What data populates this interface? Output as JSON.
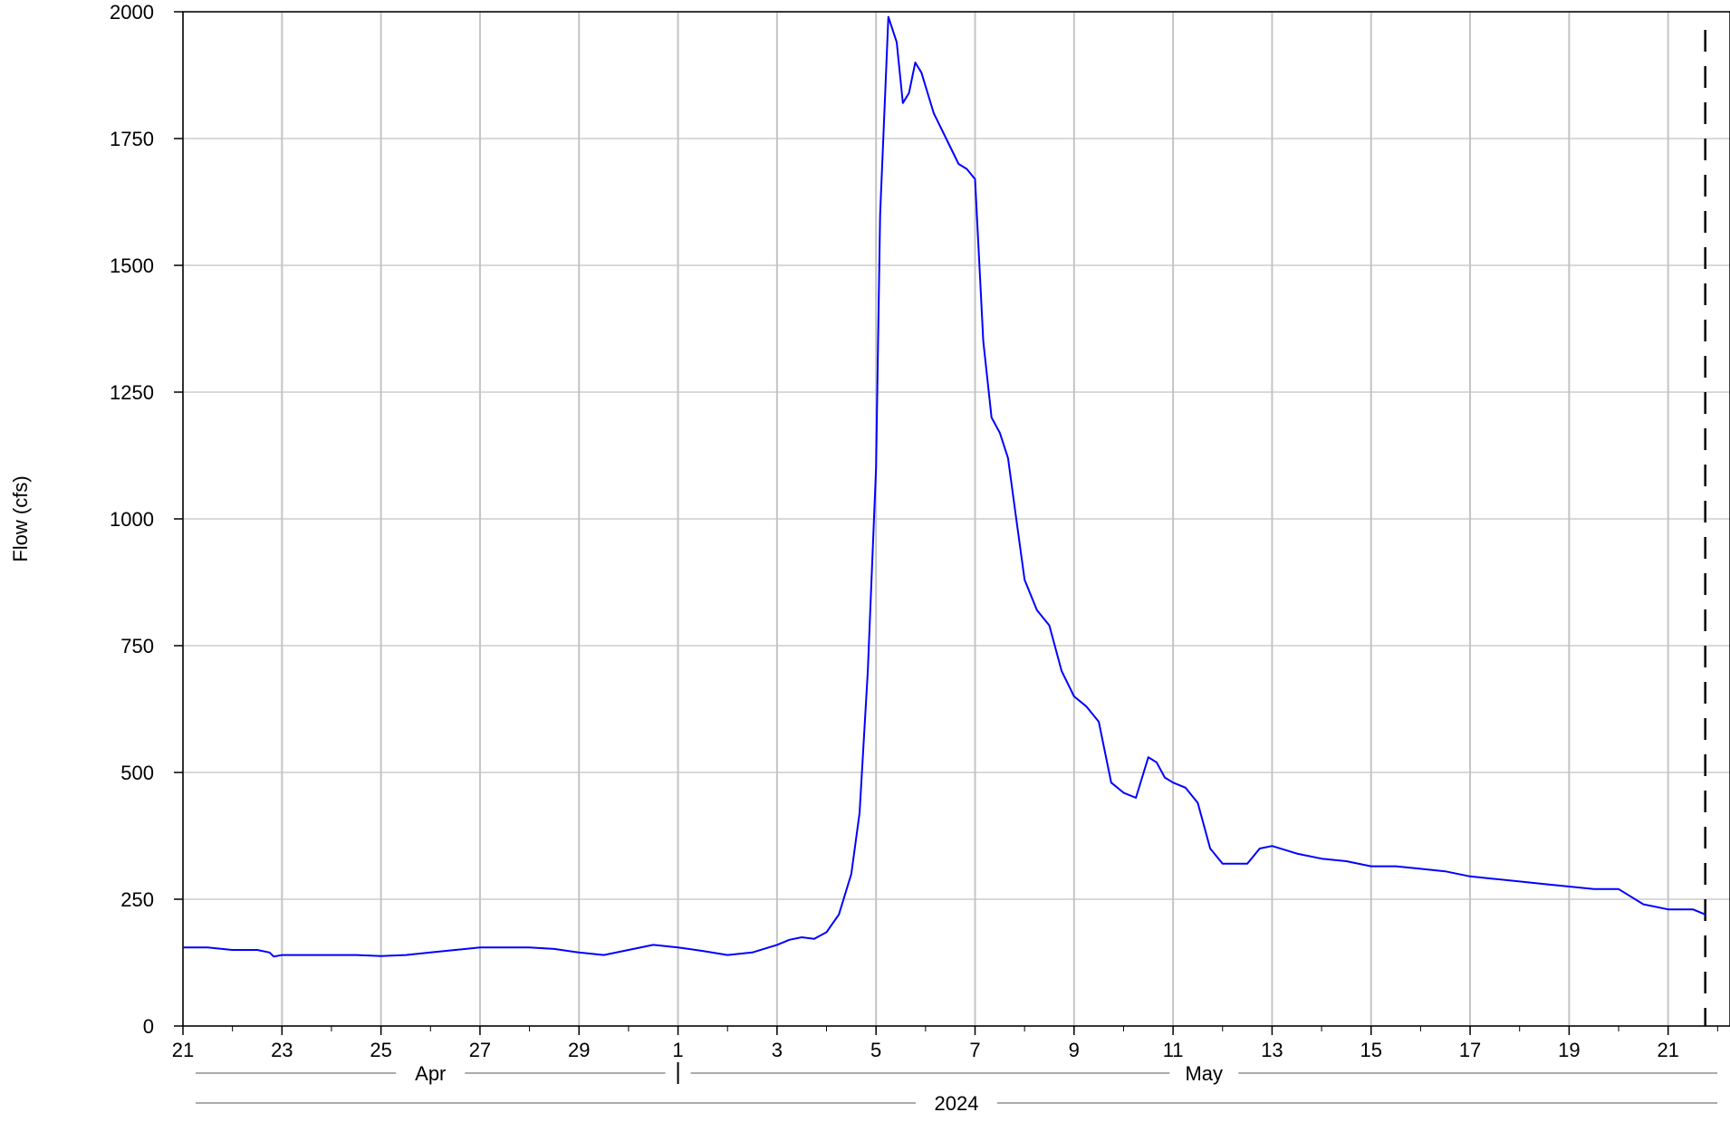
{
  "chart_data": {
    "type": "line",
    "title": "",
    "ylabel": "Flow (cfs)",
    "xlabel": "",
    "ylim": [
      0,
      2000
    ],
    "xlim": [
      "2024-04-21",
      "2024-05-22T06:00"
    ],
    "grid": true,
    "y_ticks": [
      0,
      250,
      500,
      750,
      1000,
      1250,
      1500,
      1750,
      2000
    ],
    "x_ticks": [
      {
        "date": "2024-04-21",
        "label": "21"
      },
      {
        "date": "2024-04-23",
        "label": "23"
      },
      {
        "date": "2024-04-25",
        "label": "25"
      },
      {
        "date": "2024-04-27",
        "label": "27"
      },
      {
        "date": "2024-04-29",
        "label": "29"
      },
      {
        "date": "2024-05-01",
        "label": "1"
      },
      {
        "date": "2024-05-03",
        "label": "3"
      },
      {
        "date": "2024-05-05",
        "label": "5"
      },
      {
        "date": "2024-05-07",
        "label": "7"
      },
      {
        "date": "2024-05-09",
        "label": "9"
      },
      {
        "date": "2024-05-11",
        "label": "11"
      },
      {
        "date": "2024-05-13",
        "label": "13"
      },
      {
        "date": "2024-05-15",
        "label": "15"
      },
      {
        "date": "2024-05-17",
        "label": "17"
      },
      {
        "date": "2024-05-19",
        "label": "19"
      },
      {
        "date": "2024-05-21",
        "label": "21"
      }
    ],
    "month_labels": [
      {
        "label": "Apr",
        "start": "2024-04-21",
        "end": "2024-05-01"
      },
      {
        "label": "May",
        "start": "2024-05-01",
        "end": "2024-05-22T06:00"
      }
    ],
    "year_label": "2024",
    "marker_line": {
      "date": "2024-05-21T18:00",
      "style": "dashed",
      "color": "#000000"
    },
    "series": [
      {
        "color": "#0000ff",
        "x": [
          "2024-04-21T00:00",
          "2024-04-21T12:00",
          "2024-04-22T00:00",
          "2024-04-22T12:00",
          "2024-04-22T18:00",
          "2024-04-22T20:00",
          "2024-04-23T00:00",
          "2024-04-23T12:00",
          "2024-04-24T00:00",
          "2024-04-24T12:00",
          "2024-04-25T00:00",
          "2024-04-25T12:00",
          "2024-04-26T00:00",
          "2024-04-26T12:00",
          "2024-04-27T00:00",
          "2024-04-27T12:00",
          "2024-04-28T00:00",
          "2024-04-28T12:00",
          "2024-04-29T00:00",
          "2024-04-29T12:00",
          "2024-04-30T00:00",
          "2024-04-30T12:00",
          "2024-05-01T00:00",
          "2024-05-01T12:00",
          "2024-05-02T00:00",
          "2024-05-02T12:00",
          "2024-05-03T00:00",
          "2024-05-03T06:00",
          "2024-05-03T12:00",
          "2024-05-03T18:00",
          "2024-05-04T00:00",
          "2024-05-04T06:00",
          "2024-05-04T12:00",
          "2024-05-04T16:00",
          "2024-05-04T20:00",
          "2024-05-05T00:00",
          "2024-05-05T02:00",
          "2024-05-05T06:00",
          "2024-05-05T10:00",
          "2024-05-05T13:00",
          "2024-05-05T16:00",
          "2024-05-05T19:00",
          "2024-05-05T22:00",
          "2024-05-06T04:00",
          "2024-05-06T10:00",
          "2024-05-06T16:00",
          "2024-05-06T20:00",
          "2024-05-07T00:00",
          "2024-05-07T04:00",
          "2024-05-07T08:00",
          "2024-05-07T12:00",
          "2024-05-07T16:00",
          "2024-05-07T20:00",
          "2024-05-08T00:00",
          "2024-05-08T06:00",
          "2024-05-08T12:00",
          "2024-05-08T18:00",
          "2024-05-09T00:00",
          "2024-05-09T06:00",
          "2024-05-09T12:00",
          "2024-05-09T18:00",
          "2024-05-10T00:00",
          "2024-05-10T06:00",
          "2024-05-10T12:00",
          "2024-05-10T16:00",
          "2024-05-10T20:00",
          "2024-05-11T00:00",
          "2024-05-11T06:00",
          "2024-05-11T12:00",
          "2024-05-11T18:00",
          "2024-05-12T00:00",
          "2024-05-12T06:00",
          "2024-05-12T12:00",
          "2024-05-12T18:00",
          "2024-05-13T00:00",
          "2024-05-13T12:00",
          "2024-05-14T00:00",
          "2024-05-14T12:00",
          "2024-05-15T00:00",
          "2024-05-15T12:00",
          "2024-05-16T00:00",
          "2024-05-16T12:00",
          "2024-05-17T00:00",
          "2024-05-17T12:00",
          "2024-05-18T00:00",
          "2024-05-18T12:00",
          "2024-05-19T00:00",
          "2024-05-19T12:00",
          "2024-05-20T00:00",
          "2024-05-20T06:00",
          "2024-05-20T12:00",
          "2024-05-21T00:00",
          "2024-05-21T12:00",
          "2024-05-21T18:00"
        ],
        "y": [
          155,
          155,
          150,
          150,
          145,
          137,
          140,
          140,
          140,
          140,
          138,
          140,
          145,
          150,
          155,
          155,
          155,
          152,
          145,
          140,
          150,
          160,
          155,
          148,
          140,
          145,
          160,
          170,
          175,
          172,
          185,
          220,
          300,
          420,
          700,
          1100,
          1600,
          1990,
          1940,
          1820,
          1840,
          1900,
          1880,
          1800,
          1750,
          1700,
          1690,
          1670,
          1350,
          1200,
          1170,
          1120,
          1000,
          880,
          820,
          790,
          700,
          650,
          630,
          600,
          480,
          460,
          450,
          530,
          520,
          490,
          480,
          470,
          440,
          350,
          320,
          320,
          320,
          350,
          355,
          340,
          330,
          325,
          315,
          315,
          310,
          305,
          295,
          290,
          285,
          280,
          275,
          270,
          270,
          255,
          240,
          230,
          230,
          220
        ]
      }
    ]
  }
}
